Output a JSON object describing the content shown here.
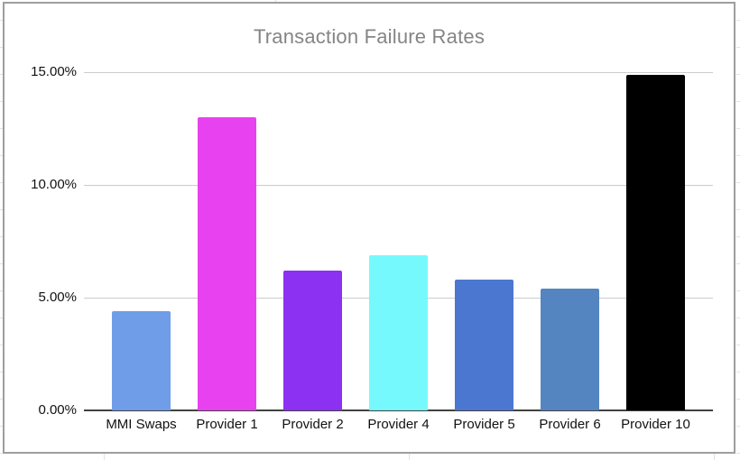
{
  "chart_data": {
    "type": "bar",
    "title": "Transaction Failure Rates",
    "categories": [
      "MMI Swaps",
      "Provider 1",
      "Provider 2",
      "Provider 4",
      "Provider 5",
      "Provider 6",
      "Provider 10"
    ],
    "values": [
      4.4,
      13.0,
      6.2,
      6.9,
      5.8,
      5.4,
      14.9
    ],
    "unit": "%",
    "bar_colors": [
      "#6f9de8",
      "#e841f0",
      "#8c31f2",
      "#76f9fc",
      "#4b77d0",
      "#5485c1",
      "#000000"
    ],
    "xlabel": "",
    "ylabel": "",
    "ylim": [
      0,
      15
    ],
    "yticks": [
      0,
      5,
      10,
      15
    ],
    "ytick_labels": [
      "0.00%",
      "5.00%",
      "10.00%",
      "15.00%"
    ],
    "grid": true,
    "legend": "none"
  },
  "colors": {
    "background": "#ffffff",
    "chart_border": "#9e9e9e",
    "title_text": "#858585",
    "axis_text": "#111111",
    "gridline": "#cccccc",
    "axis_line": "#424242",
    "sheet_gridline": "#dfe2e4"
  }
}
